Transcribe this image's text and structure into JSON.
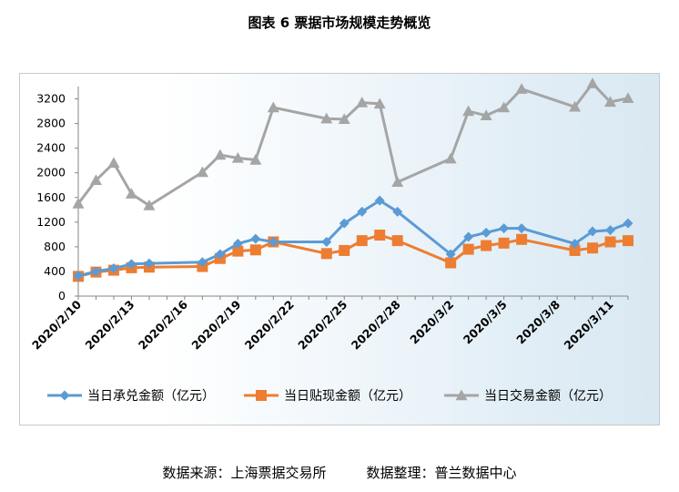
{
  "figure_title": "图表 6  票据市场规模走势概览",
  "source": {
    "origin": "数据来源：上海票据交易所",
    "compiled": "数据整理：普兰数据中心"
  },
  "colors": {
    "acceptance": "#5b9bd5",
    "discount": "#ed7d31",
    "trade": "#a5a5a5"
  },
  "chart_data": {
    "type": "line",
    "title": "",
    "xlabel": "",
    "ylabel": "",
    "ylim": [
      0,
      3400
    ],
    "yticks": [
      "0",
      "400",
      "800",
      "1200",
      "1600",
      "2000",
      "2400",
      "2800",
      "3200"
    ],
    "xlim": [
      "2020/2/10",
      "2020/3/12"
    ],
    "xticks": [
      "2020/2/10",
      "2020/2/13",
      "2020/2/16",
      "2020/2/19",
      "2020/2/22",
      "2020/2/25",
      "2020/2/28",
      "2020/3/2",
      "2020/3/5",
      "2020/3/8",
      "2020/3/11"
    ],
    "grid": false,
    "legend": "bottom",
    "series": [
      {
        "name": "当日承兑金额（亿元）",
        "color": "#5b9bd5",
        "marker": "diamond",
        "points": [
          [
            "2020/2/10",
            330
          ],
          [
            "2020/2/11",
            400
          ],
          [
            "2020/2/12",
            450
          ],
          [
            "2020/2/13",
            520
          ],
          [
            "2020/2/14",
            530
          ],
          [
            "2020/2/17",
            550
          ],
          [
            "2020/2/18",
            680
          ],
          [
            "2020/2/19",
            850
          ],
          [
            "2020/2/20",
            930
          ],
          [
            "2020/2/21",
            880
          ],
          [
            "2020/2/24",
            880
          ],
          [
            "2020/2/25",
            1180
          ],
          [
            "2020/2/26",
            1370
          ],
          [
            "2020/2/27",
            1550
          ],
          [
            "2020/2/28",
            1370
          ],
          [
            "2020/3/2",
            680
          ],
          [
            "2020/3/3",
            960
          ],
          [
            "2020/3/4",
            1030
          ],
          [
            "2020/3/5",
            1100
          ],
          [
            "2020/3/6",
            1100
          ],
          [
            "2020/3/9",
            850
          ],
          [
            "2020/3/10",
            1050
          ],
          [
            "2020/3/11",
            1070
          ],
          [
            "2020/3/12",
            1180
          ]
        ]
      },
      {
        "name": "当日贴现金额（亿元）",
        "color": "#ed7d31",
        "marker": "square",
        "points": [
          [
            "2020/2/10",
            320
          ],
          [
            "2020/2/11",
            390
          ],
          [
            "2020/2/12",
            420
          ],
          [
            "2020/2/13",
            460
          ],
          [
            "2020/2/14",
            470
          ],
          [
            "2020/2/17",
            480
          ],
          [
            "2020/2/18",
            610
          ],
          [
            "2020/2/19",
            730
          ],
          [
            "2020/2/20",
            750
          ],
          [
            "2020/2/21",
            880
          ],
          [
            "2020/2/24",
            690
          ],
          [
            "2020/2/25",
            740
          ],
          [
            "2020/2/26",
            900
          ],
          [
            "2020/2/27",
            990
          ],
          [
            "2020/2/28",
            900
          ],
          [
            "2020/3/2",
            540
          ],
          [
            "2020/3/3",
            760
          ],
          [
            "2020/3/4",
            820
          ],
          [
            "2020/3/5",
            860
          ],
          [
            "2020/3/6",
            920
          ],
          [
            "2020/3/9",
            740
          ],
          [
            "2020/3/10",
            780
          ],
          [
            "2020/3/11",
            880
          ],
          [
            "2020/3/12",
            900
          ]
        ]
      },
      {
        "name": "当日交易金额（亿元）",
        "color": "#a5a5a5",
        "marker": "triangle",
        "points": [
          [
            "2020/2/10",
            1500
          ],
          [
            "2020/2/11",
            1880
          ],
          [
            "2020/2/12",
            2160
          ],
          [
            "2020/2/13",
            1660
          ],
          [
            "2020/2/14",
            1470
          ],
          [
            "2020/2/17",
            2010
          ],
          [
            "2020/2/18",
            2290
          ],
          [
            "2020/2/19",
            2240
          ],
          [
            "2020/2/20",
            2210
          ],
          [
            "2020/2/21",
            3060
          ],
          [
            "2020/2/24",
            2880
          ],
          [
            "2020/2/25",
            2870
          ],
          [
            "2020/2/26",
            3140
          ],
          [
            "2020/2/27",
            3120
          ],
          [
            "2020/2/28",
            1850
          ],
          [
            "2020/3/2",
            2230
          ],
          [
            "2020/3/3",
            3000
          ],
          [
            "2020/3/4",
            2930
          ],
          [
            "2020/3/5",
            3060
          ],
          [
            "2020/3/6",
            3360
          ],
          [
            "2020/3/9",
            3070
          ],
          [
            "2020/3/10",
            3450
          ],
          [
            "2020/3/11",
            3150
          ],
          [
            "2020/3/12",
            3210
          ]
        ]
      }
    ]
  }
}
